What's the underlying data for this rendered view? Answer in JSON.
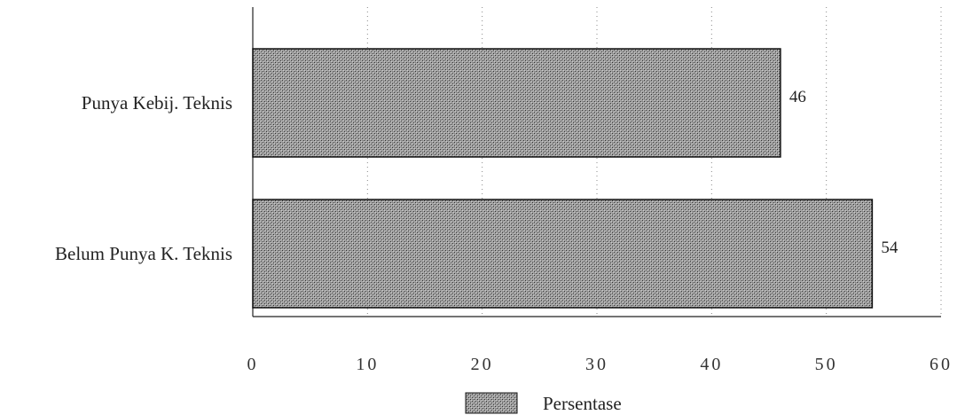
{
  "chart_data": {
    "type": "bar",
    "orientation": "horizontal",
    "categories": [
      "Punya Kebij. Teknis",
      "Belum Punya K. Teknis"
    ],
    "series": [
      {
        "name": "Persentase",
        "values": [
          46,
          54
        ]
      }
    ],
    "data_labels": [
      "46",
      "54"
    ],
    "title": "",
    "xlabel": "",
    "ylabel": "",
    "xlim": [
      0,
      60
    ],
    "x_ticks": [
      0,
      10,
      20,
      30,
      40,
      50,
      60
    ],
    "x_tick_labels": [
      "0",
      "10",
      "20",
      "30",
      "40",
      "50",
      "60"
    ],
    "grid": "vertical dotted",
    "legend_position": "bottom-center",
    "colors": {
      "bar_fill": "#9a9a9a",
      "bar_edge": "#111111",
      "axis": "#222222",
      "grid": "#888888"
    }
  }
}
